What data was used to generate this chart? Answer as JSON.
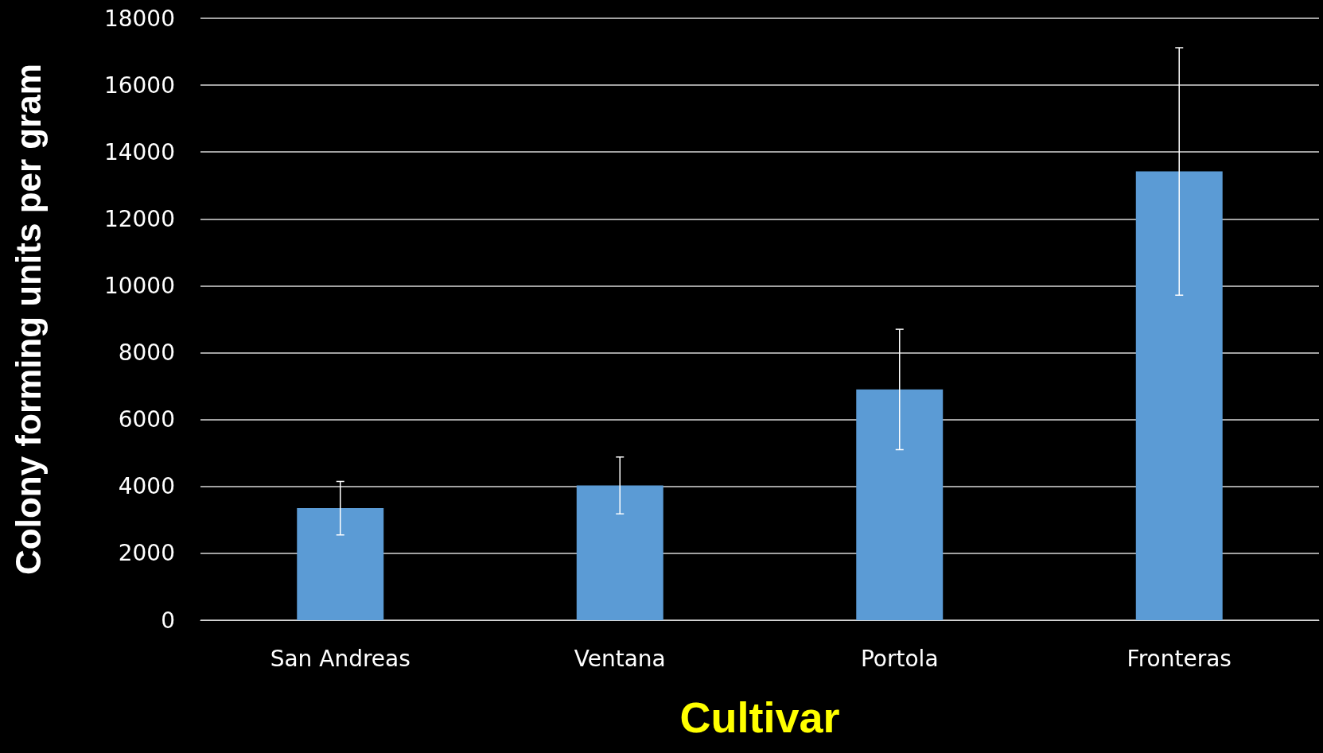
{
  "chart_data": {
    "type": "bar",
    "xlabel": "Cultivar",
    "ylabel": "Colony forming units per gram",
    "categories": [
      "San Andreas",
      "Ventana",
      "Portola",
      "Fronteras"
    ],
    "values": [
      3350,
      4030,
      6900,
      13420
    ],
    "errors": [
      800,
      850,
      1800,
      3700
    ],
    "color": "#5b9bd5",
    "ylim": [
      0,
      18000
    ],
    "yticks": [
      0,
      2000,
      4000,
      6000,
      8000,
      10000,
      12000,
      14000,
      16000,
      18000
    ],
    "grid": "y"
  }
}
